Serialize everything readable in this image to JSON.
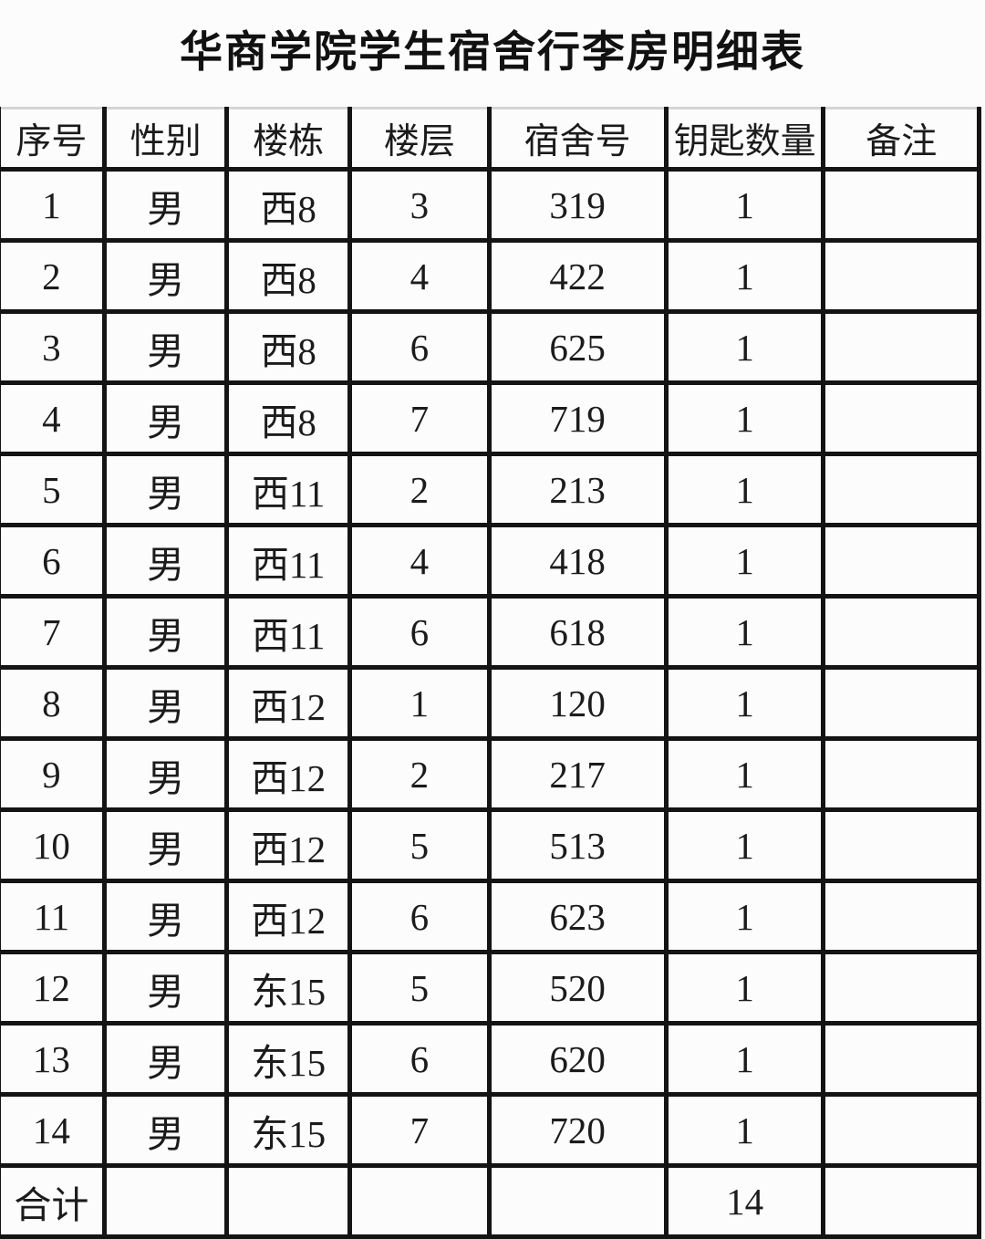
{
  "title": "华商学院学生宿舍行李房明细表",
  "table": {
    "columns": [
      "序号",
      "性别",
      "楼栋",
      "楼层",
      "宿舍号",
      "钥匙数量",
      "备注"
    ],
    "rows": [
      {
        "no": "1",
        "gender": "男",
        "building": "西8",
        "floor": "3",
        "room": "319",
        "keys": "1",
        "remark": ""
      },
      {
        "no": "2",
        "gender": "男",
        "building": "西8",
        "floor": "4",
        "room": "422",
        "keys": "1",
        "remark": ""
      },
      {
        "no": "3",
        "gender": "男",
        "building": "西8",
        "floor": "6",
        "room": "625",
        "keys": "1",
        "remark": ""
      },
      {
        "no": "4",
        "gender": "男",
        "building": "西8",
        "floor": "7",
        "room": "719",
        "keys": "1",
        "remark": ""
      },
      {
        "no": "5",
        "gender": "男",
        "building": "西11",
        "floor": "2",
        "room": "213",
        "keys": "1",
        "remark": ""
      },
      {
        "no": "6",
        "gender": "男",
        "building": "西11",
        "floor": "4",
        "room": "418",
        "keys": "1",
        "remark": ""
      },
      {
        "no": "7",
        "gender": "男",
        "building": "西11",
        "floor": "6",
        "room": "618",
        "keys": "1",
        "remark": ""
      },
      {
        "no": "8",
        "gender": "男",
        "building": "西12",
        "floor": "1",
        "room": "120",
        "keys": "1",
        "remark": ""
      },
      {
        "no": "9",
        "gender": "男",
        "building": "西12",
        "floor": "2",
        "room": "217",
        "keys": "1",
        "remark": ""
      },
      {
        "no": "10",
        "gender": "男",
        "building": "西12",
        "floor": "5",
        "room": "513",
        "keys": "1",
        "remark": ""
      },
      {
        "no": "11",
        "gender": "男",
        "building": "西12",
        "floor": "6",
        "room": "623",
        "keys": "1",
        "remark": ""
      },
      {
        "no": "12",
        "gender": "男",
        "building": "东15",
        "floor": "5",
        "room": "520",
        "keys": "1",
        "remark": ""
      },
      {
        "no": "13",
        "gender": "男",
        "building": "东15",
        "floor": "6",
        "room": "620",
        "keys": "1",
        "remark": ""
      },
      {
        "no": "14",
        "gender": "男",
        "building": "东15",
        "floor": "7",
        "room": "720",
        "keys": "1",
        "remark": ""
      }
    ],
    "total_row": {
      "label": "合计",
      "gender": "",
      "building": "",
      "floor": "",
      "room": "",
      "keys_total": "14",
      "remark": ""
    }
  },
  "colors": {
    "border": "#141414",
    "top_line": "#d4d4d8",
    "text": "#1b1b1b",
    "background": "#fcfcfd"
  }
}
